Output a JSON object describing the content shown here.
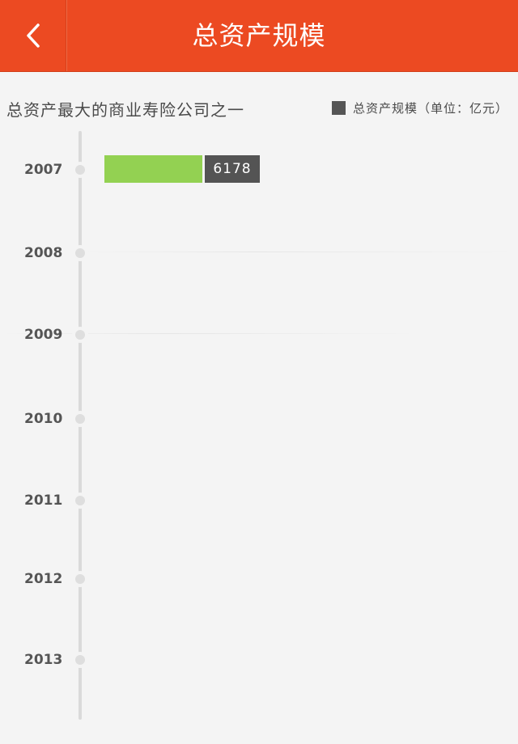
{
  "header": {
    "title": "总资产规模",
    "back_icon": "chevron-left-icon"
  },
  "chart_data": {
    "type": "bar",
    "title": "总资产最大的商业寿险公司之一",
    "legend": [
      {
        "label": "总资产规模（单位：亿元）",
        "color": "#555555"
      }
    ],
    "categories": [
      "2007",
      "2008",
      "2009",
      "2010",
      "2011",
      "2012",
      "2013"
    ],
    "series": [
      {
        "values": [
          6178,
          null,
          null,
          null,
          null,
          null,
          null
        ]
      }
    ],
    "value_labels": [
      "6178",
      "",
      "",
      "",
      "",
      "",
      ""
    ],
    "bar_color": "#93d152",
    "label_color": "#545454",
    "orientation": "horizontal",
    "xlim": [
      0,
      31000
    ]
  },
  "colors": {
    "accent": "#ec4a22",
    "background": "#f4f4f4"
  }
}
